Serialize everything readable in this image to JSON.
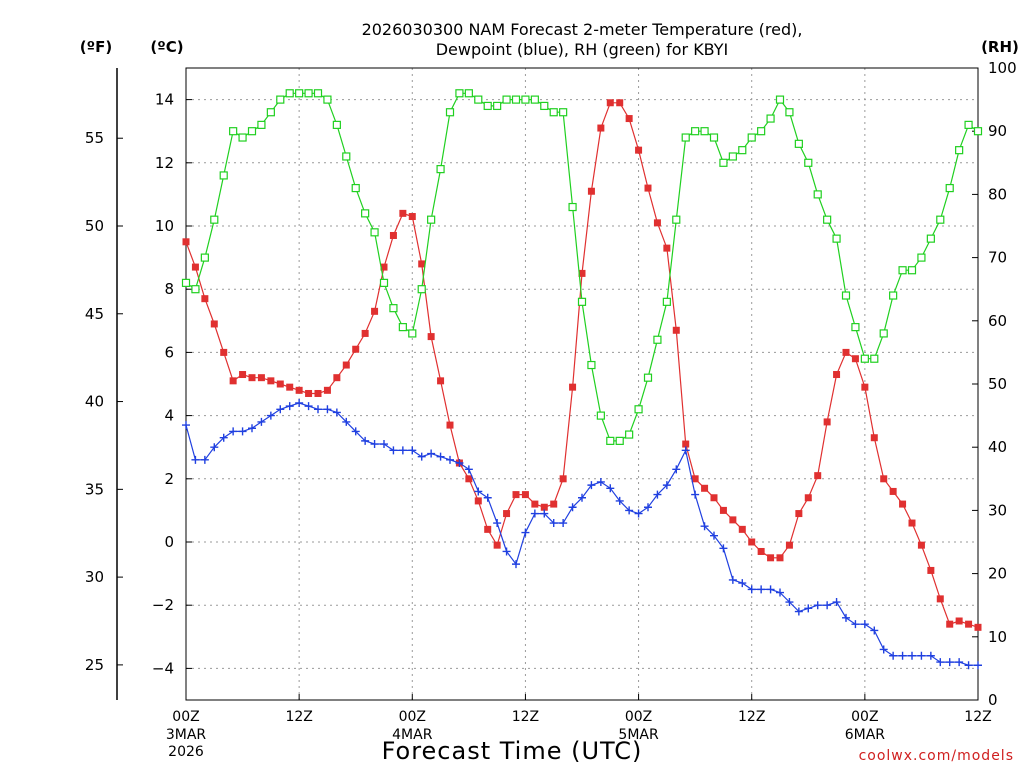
{
  "chart_data": {
    "type": "line",
    "title_line1": "2026030300 NAM Forecast 2-meter Temperature (red),",
    "title_line2": "Dewpoint (blue), RH (green) for KBYI",
    "xlabel": "Forecast Time (UTC)",
    "credit": "coolwx.com/models",
    "y_units": {
      "fahrenheit": "(ºF)",
      "celsius": "(ºC)",
      "rh": "(RH)"
    },
    "xlim_hours": [
      0,
      84
    ],
    "ylim_celsius": [
      -5,
      15
    ],
    "ylim_rh": [
      0,
      100
    ],
    "ylim_fahrenheit_ticks": [
      25,
      30,
      35,
      40,
      45,
      50,
      55
    ],
    "celsius_ticks": [
      -4,
      -2,
      0,
      2,
      4,
      6,
      8,
      10,
      12,
      14
    ],
    "rh_ticks": [
      0,
      10,
      20,
      30,
      40,
      50,
      60,
      70,
      80,
      90,
      100
    ],
    "x_ticks": [
      {
        "hour": 0,
        "label": "00Z",
        "sub1": "3MAR",
        "sub2": "2026"
      },
      {
        "hour": 12,
        "label": "12Z",
        "sub1": "",
        "sub2": ""
      },
      {
        "hour": 24,
        "label": "00Z",
        "sub1": "4MAR",
        "sub2": ""
      },
      {
        "hour": 36,
        "label": "12Z",
        "sub1": "",
        "sub2": ""
      },
      {
        "hour": 48,
        "label": "00Z",
        "sub1": "5MAR",
        "sub2": ""
      },
      {
        "hour": 60,
        "label": "12Z",
        "sub1": "",
        "sub2": ""
      },
      {
        "hour": 72,
        "label": "00Z",
        "sub1": "6MAR",
        "sub2": ""
      },
      {
        "hour": 84,
        "label": "12Z",
        "sub1": "",
        "sub2": ""
      }
    ],
    "grid": true,
    "hours": [
      0,
      1,
      2,
      3,
      4,
      5,
      6,
      7,
      8,
      9,
      10,
      11,
      12,
      13,
      14,
      15,
      16,
      17,
      18,
      19,
      20,
      21,
      22,
      23,
      24,
      25,
      26,
      27,
      28,
      29,
      30,
      31,
      32,
      33,
      34,
      35,
      36,
      37,
      38,
      39,
      40,
      41,
      42,
      43,
      44,
      45,
      46,
      47,
      48,
      49,
      50,
      51,
      52,
      53,
      54,
      55,
      56,
      57,
      58,
      59,
      60,
      61,
      62,
      63,
      64,
      65,
      66,
      67,
      68,
      69,
      70,
      71,
      72,
      73,
      74,
      75,
      76,
      77,
      78,
      79,
      80,
      81,
      82,
      83,
      84
    ],
    "series": [
      {
        "name": "Temperature",
        "color": "#e03030",
        "marker": "filled-square",
        "axis": "celsius",
        "values": [
          9.5,
          8.7,
          7.7,
          6.9,
          6.0,
          5.1,
          5.3,
          5.2,
          5.2,
          5.1,
          5.0,
          4.9,
          4.8,
          4.7,
          4.7,
          4.8,
          5.2,
          5.6,
          6.1,
          6.6,
          7.3,
          8.7,
          9.7,
          10.4,
          10.3,
          8.8,
          6.5,
          5.1,
          3.7,
          2.5,
          2.0,
          1.3,
          0.4,
          -0.1,
          0.9,
          1.5,
          1.5,
          1.2,
          1.1,
          1.2,
          2.0,
          4.9,
          8.5,
          11.1,
          13.1,
          13.9,
          13.9,
          13.4,
          12.4,
          11.2,
          10.1,
          9.3,
          6.7,
          3.1,
          2.0,
          1.7,
          1.4,
          1.0,
          0.7,
          0.4,
          0.0,
          -0.3,
          -0.5,
          -0.5,
          -0.1,
          0.9,
          1.4,
          2.1,
          3.8,
          5.3,
          6.0,
          5.8,
          4.9,
          3.3,
          2.0,
          1.6,
          1.2,
          0.6,
          -0.1,
          -0.9,
          -1.8,
          -2.6,
          -2.5,
          -2.6,
          -2.7
        ]
      },
      {
        "name": "Dewpoint",
        "color": "#2040e0",
        "marker": "plus",
        "axis": "celsius",
        "values": [
          3.7,
          2.6,
          2.6,
          3.0,
          3.3,
          3.5,
          3.5,
          3.6,
          3.8,
          4.0,
          4.2,
          4.3,
          4.4,
          4.3,
          4.2,
          4.2,
          4.1,
          3.8,
          3.5,
          3.2,
          3.1,
          3.1,
          2.9,
          2.9,
          2.9,
          2.7,
          2.8,
          2.7,
          2.6,
          2.5,
          2.3,
          1.6,
          1.4,
          0.6,
          -0.3,
          -0.7,
          0.3,
          0.9,
          0.9,
          0.6,
          0.6,
          1.1,
          1.4,
          1.8,
          1.9,
          1.7,
          1.3,
          1.0,
          0.9,
          1.1,
          1.5,
          1.8,
          2.3,
          2.9,
          1.5,
          0.5,
          0.2,
          -0.2,
          -1.2,
          -1.3,
          -1.5,
          -1.5,
          -1.5,
          -1.6,
          -1.9,
          -2.2,
          -2.1,
          -2.0,
          -2.0,
          -1.9,
          -2.4,
          -2.6,
          -2.6,
          -2.8,
          -3.4,
          -3.6,
          -3.6,
          -3.6,
          -3.6,
          -3.6,
          -3.8,
          -3.8,
          -3.8,
          -3.9,
          -3.9
        ]
      },
      {
        "name": "RH",
        "color": "#20d020",
        "marker": "open-square",
        "axis": "rh",
        "values": [
          66,
          65,
          70,
          76,
          83,
          90,
          89,
          90,
          91,
          93,
          95,
          96,
          96,
          96,
          96,
          95,
          91,
          86,
          81,
          77,
          74,
          66,
          62,
          59,
          58,
          65,
          76,
          84,
          93,
          96,
          96,
          95,
          94,
          94,
          95,
          95,
          95,
          95,
          94,
          93,
          93,
          78,
          63,
          53,
          45,
          41,
          41,
          42,
          46,
          51,
          57,
          63,
          76,
          89,
          90,
          90,
          89,
          85,
          86,
          87,
          89,
          90,
          92,
          95,
          93,
          88,
          85,
          80,
          76,
          73,
          64,
          59,
          54,
          54,
          58,
          64,
          68,
          68,
          70,
          73,
          76,
          81,
          87,
          91,
          90
        ]
      }
    ]
  }
}
